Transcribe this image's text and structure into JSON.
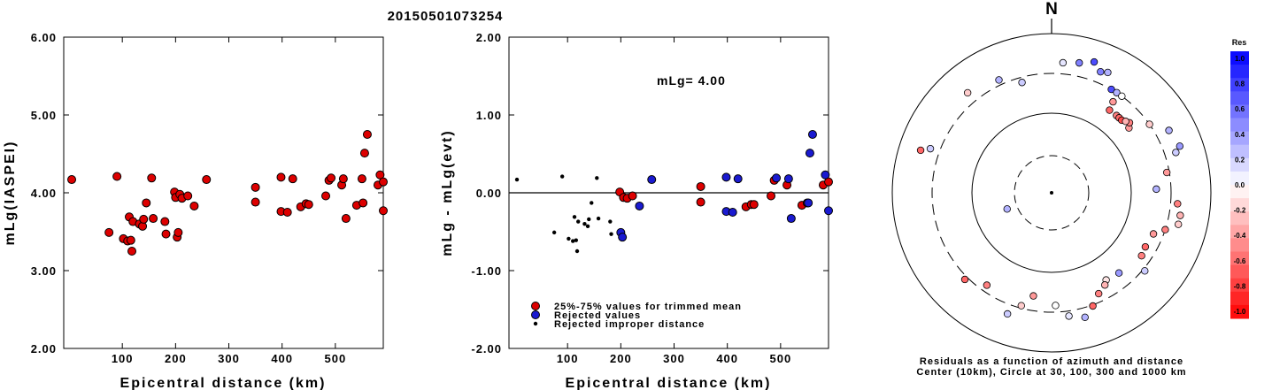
{
  "title": "20150501073254",
  "left_plot": {
    "ylabel": "mLg(IASPEI)",
    "xlabel": "Epicentral distance (km)",
    "xticks": [
      "100",
      "200",
      "300",
      "400",
      "500"
    ],
    "yticks": [
      "2.00",
      "3.00",
      "4.00",
      "5.00",
      "6.00"
    ]
  },
  "right_plot": {
    "ylabel": "mLg - mLg(evt)",
    "xlabel": "Epicentral distance (km)",
    "xticks": [
      "100",
      "200",
      "300",
      "400",
      "500"
    ],
    "yticks": [
      "-2.00",
      "-1.00",
      "0.00",
      "1.00",
      "2.00"
    ],
    "annotation": "mLg= 4.00",
    "legend": [
      "25%-75% values for trimmed mean",
      "Rejected values",
      "Rejected improper distance"
    ]
  },
  "polar_plot": {
    "north_label": "N",
    "caption_line1": "Residuals as a function of azimuth and distance",
    "caption_line2": "Center (10km), Circle at 30, 100, 300 and 1000 km"
  },
  "colorbar": {
    "title": "Res",
    "ticks": [
      "1.0",
      "0.8",
      "0.6",
      "0.4",
      "0.2",
      "0.0",
      "-0.2",
      "-0.4",
      "-0.6",
      "-0.8",
      "-1.0"
    ]
  },
  "colors": {
    "used": "#dd0000",
    "rejected": "#1a1ad0",
    "improper": "#000000"
  },
  "chart_data": [
    {
      "type": "scatter",
      "xlabel": "Epicentral distance (km)",
      "ylabel": "mLg(IASPEI)",
      "xlim": [
        -10,
        590
      ],
      "ylim": [
        2.0,
        6.0
      ],
      "series": [
        {
          "status": "used",
          "points": [
            [
              5,
              4.17
            ],
            [
              75,
              3.49
            ],
            [
              90,
              4.21
            ],
            [
              102,
              3.41
            ],
            [
              110,
              3.38
            ],
            [
              113,
              3.69
            ],
            [
              116,
              3.39
            ],
            [
              118,
              3.25
            ],
            [
              120,
              3.63
            ],
            [
              132,
              3.6
            ],
            [
              138,
              3.57
            ],
            [
              140,
              3.66
            ],
            [
              145,
              3.87
            ],
            [
              155,
              4.19
            ],
            [
              158,
              3.67
            ],
            [
              180,
              3.63
            ],
            [
              182,
              3.47
            ],
            [
              198,
              4.01
            ],
            [
              200,
              3.94
            ],
            [
              203,
              3.43
            ],
            [
              205,
              3.49
            ],
            [
              208,
              3.98
            ],
            [
              212,
              3.93
            ],
            [
              223,
              3.96
            ],
            [
              235,
              3.83
            ],
            [
              258,
              4.17
            ],
            [
              350,
              4.07
            ],
            [
              350,
              3.88
            ],
            [
              398,
              4.2
            ],
            [
              398,
              3.76
            ],
            [
              410,
              3.75
            ],
            [
              420,
              4.18
            ],
            [
              435,
              3.82
            ],
            [
              445,
              3.86
            ],
            [
              450,
              3.85
            ],
            [
              482,
              3.96
            ],
            [
              488,
              4.16
            ],
            [
              492,
              4.19
            ],
            [
              512,
              4.1
            ],
            [
              515,
              4.18
            ],
            [
              520,
              3.67
            ],
            [
              540,
              3.84
            ],
            [
              550,
              4.18
            ],
            [
              552,
              3.87
            ],
            [
              555,
              4.51
            ],
            [
              560,
              4.75
            ],
            [
              580,
              4.1
            ],
            [
              584,
              4.23
            ],
            [
              590,
              3.77
            ],
            [
              590,
              4.14
            ]
          ]
        }
      ]
    },
    {
      "type": "scatter",
      "xlabel": "Epicentral distance (km)",
      "ylabel": "mLg - mLg(evt)",
      "xlim": [
        -10,
        590
      ],
      "ylim": [
        -2.0,
        2.0
      ],
      "reference_line_y": 0.0,
      "series": [
        {
          "name": "25%-75% values for trimmed mean",
          "color": "#dd0000",
          "points": [
            [
              198,
              0.01
            ],
            [
              205,
              -0.06
            ],
            [
              212,
              -0.07
            ],
            [
              222,
              -0.04
            ],
            [
              350,
              0.08
            ],
            [
              350,
              -0.12
            ],
            [
              435,
              -0.18
            ],
            [
              445,
              -0.15
            ],
            [
              450,
              -0.15
            ],
            [
              482,
              -0.04
            ],
            [
              488,
              0.16
            ],
            [
              512,
              0.1
            ],
            [
              540,
              -0.16
            ],
            [
              550,
              -0.13
            ],
            [
              580,
              0.1
            ],
            [
              590,
              0.14
            ]
          ]
        },
        {
          "name": "Rejected values",
          "color": "#1a1ad0",
          "points": [
            [
              200,
              -0.51
            ],
            [
              203,
              -0.57
            ],
            [
              235,
              -0.17
            ],
            [
              258,
              0.17
            ],
            [
              398,
              0.2
            ],
            [
              398,
              -0.24
            ],
            [
              410,
              -0.25
            ],
            [
              420,
              0.18
            ],
            [
              492,
              0.19
            ],
            [
              515,
              0.18
            ],
            [
              520,
              -0.33
            ],
            [
              552,
              -0.13
            ],
            [
              555,
              0.51
            ],
            [
              560,
              0.75
            ],
            [
              584,
              0.23
            ],
            [
              590,
              -0.23
            ]
          ]
        },
        {
          "name": "Rejected improper distance",
          "color": "#000000",
          "points": [
            [
              5,
              0.17
            ],
            [
              75,
              -0.51
            ],
            [
              90,
              0.21
            ],
            [
              102,
              -0.59
            ],
            [
              110,
              -0.62
            ],
            [
              113,
              -0.31
            ],
            [
              116,
              -0.61
            ],
            [
              118,
              -0.75
            ],
            [
              120,
              -0.37
            ],
            [
              132,
              -0.4
            ],
            [
              138,
              -0.43
            ],
            [
              140,
              -0.34
            ],
            [
              145,
              -0.13
            ],
            [
              155,
              0.19
            ],
            [
              158,
              -0.33
            ],
            [
              180,
              -0.37
            ],
            [
              182,
              -0.53
            ]
          ]
        }
      ]
    },
    {
      "type": "scatter",
      "xlabel": "",
      "ylabel": "",
      "note": "polar: azimuth (degrees from north) vs log distance (km), colored by residual",
      "series": [
        {
          "points": [
            [
              22,
              420,
              0.5
            ],
            [
              30,
              300,
              0.7
            ],
            [
              33,
              300,
              0.3
            ],
            [
              36,
              300,
              0.0
            ],
            [
              34,
              230,
              -0.4
            ],
            [
              35,
              180,
              -0.6
            ],
            [
              40,
              180,
              -0.5
            ],
            [
              42,
              180,
              -0.6
            ],
            [
              44,
              180,
              -0.7
            ],
            [
              50,
              180,
              -0.4
            ],
            [
              48,
              200,
              -0.5
            ],
            [
              46,
              190,
              -0.3
            ],
            [
              55,
              300,
              -0.2
            ],
            [
              62,
              450,
              0.3
            ],
            [
              70,
              500,
              0.4
            ],
            [
              72,
              420,
              0.2
            ],
            [
              80,
              280,
              -0.4
            ],
            [
              88,
              200,
              0.3
            ],
            [
              95,
              370,
              -0.5
            ],
            [
              100,
              420,
              -0.3
            ],
            [
              104,
              420,
              -0.2
            ],
            [
              108,
              300,
              -0.5
            ],
            [
              112,
              230,
              -0.4
            ],
            [
              120,
              220,
              -0.6
            ],
            [
              125,
              230,
              -0.5
            ],
            [
              130,
              320,
              0.2
            ],
            [
              140,
              200,
              0.4
            ],
            [
              148,
              190,
              -0.1
            ],
            [
              150,
              210,
              -0.3
            ],
            [
              155,
              240,
              -0.5
            ],
            [
              160,
              310,
              -0.6
            ],
            [
              165,
              400,
              0.3
            ],
            [
              172,
              350,
              0.1
            ],
            [
              178,
              250,
              0.0
            ],
            [
              190,
              200,
              -0.4
            ],
            [
              195,
              280,
              -0.2
            ],
            [
              200,
              400,
              0.2
            ],
            [
              215,
              250,
              -0.5
            ],
            [
              225,
              330,
              -0.6
            ],
            [
              250,
              40,
              0.3
            ],
            [
              290,
              400,
              0.2
            ],
            [
              288,
              520,
              -0.6
            ],
            [
              320,
              420,
              -0.2
            ],
            [
              335,
              350,
              0.3
            ],
            [
              345,
              260,
              0.2
            ],
            [
              5,
              420,
              0.1
            ],
            [
              12,
              450,
              0.5
            ],
            [
              18,
              520,
              0.7
            ],
            [
              25,
              450,
              0.3
            ]
          ]
        }
      ]
    }
  ]
}
